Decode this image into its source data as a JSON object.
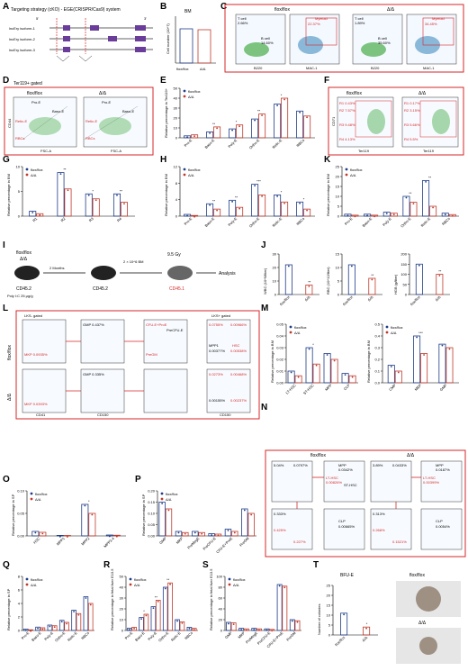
{
  "colors": {
    "flox": "#1f3c88",
    "delta": "#c0392b",
    "gate": "#d62728",
    "box": "#d62728"
  },
  "legend": {
    "flox": "flox/flox",
    "delta": "Δ/Δ"
  },
  "panelA": {
    "title": "Targeting strategy (cKO) - EGE(CRISPR/Cas9) system",
    "isoforms": [
      "lncEry isoform-1",
      "lncEry isoform-2",
      "lncEry isoform-3"
    ],
    "five": "5'",
    "three": "3'"
  },
  "panelB": {
    "title": "BM",
    "ylabel": "Cell number (10^7)",
    "categories": [
      "flox/flox",
      "Δ/Δ"
    ],
    "ticks": [
      "0",
      "1",
      "2",
      "3"
    ]
  },
  "panelC": {
    "flox_title": "flox/flox",
    "delta_title": "Δ/Δ",
    "tcell": "T cell",
    "bcell": "B cell",
    "myeloid": "Myeloid",
    "flox_t": "2.66%",
    "flox_b": "14.60%",
    "flox_m": "22.37%",
    "delta_t": "1.89%",
    "delta_b": "35.60%",
    "delta_m": "34.45%",
    "x1": "B220",
    "y1": "CD3",
    "x2": "MAC-1",
    "y2": "SSC-A"
  },
  "panelD": {
    "title": "Ter119+ gated",
    "flox_title": "flox/flox",
    "delta_title": "Δ/Δ",
    "xlabel": "FSC-A",
    "ylabel": "CD44",
    "gates": [
      "Pro-E",
      "Baso-E",
      "Poly-E",
      "Ortho-E",
      "Retic-E",
      "RBCs"
    ],
    "flox_pct": [
      "1.90%",
      "5.44%",
      "6.33%",
      "4.59%",
      "18.0%",
      "25.0%"
    ],
    "delta_pct": [
      "1.43%",
      "6.49%",
      "7.15%",
      "4.58%",
      "11.0%",
      "14.8%"
    ]
  },
  "panelF": {
    "flox_title": "flox/flox",
    "delta_title": "Δ/Δ",
    "xlabel": "Ter119",
    "ylabel": "CD71",
    "flox": [
      "R1 0.43%",
      "R2 7.57%",
      "R3 9.48%",
      "R4 4.13%"
    ],
    "delta": [
      "R1 0.17%",
      "R2 3.15%",
      "R3 5.66%",
      "R4 5.5%"
    ]
  },
  "panelI": {
    "donor": "flox/flox",
    "donor2": "Δ/Δ",
    "cd452": "CD45.2",
    "polyic": "Poly I:C 25 μg/g",
    "months": "2 Months",
    "cells": "2 × 10^6 BM",
    "gy": "9.5 Gy",
    "cd451": "CD45.1",
    "analysis": "Analysis"
  },
  "panelL": {
    "flox": "flox/flox",
    "delta": "Δ/Δ",
    "lks1": "LKS- gated",
    "lks2": "LKS+ gated",
    "gmp_f": "GMP 0.437%",
    "mkp_f": "MKP 0.0935%",
    "gmp_d": "GMP 0.335%",
    "mkp_d": "MKP 0.0393%",
    "cd41": "CD41",
    "cd150": "CD150",
    "cd16": "CD16/32",
    "cd48": "CD48",
    "cd105": "CD105",
    "cfu": "CFU-E+ProE",
    "precfu": "PreCFU-E",
    "premegE": "PreMegE",
    "pregm": "PreGM",
    "mpp1": "MPP1",
    "mpp2": "MPP2",
    "mpp34": "MPP3/4",
    "hsc": "HSC",
    "f_mpp34": "0.0755%",
    "f_mpp2": "0.00966%",
    "f_mpp1": "0.00377%",
    "f_hsc": "0.00538%",
    "d_mpp34": "0.0273%",
    "d_mpp2": "0.00468%",
    "d_mpp1": "0.00155%",
    "d_hsc": "0.00237%"
  },
  "panelN": {
    "flox": "flox/flox",
    "delta": "Δ/Δ",
    "lksm": "LKS-",
    "lksp": "LKS+",
    "mpp": "MPP",
    "lthsc": "LT-HSC",
    "sthsc": "ST-HSC",
    "gmp": "GMP",
    "mep": "MEP",
    "cmp": "CMP",
    "clp": "CLP",
    "sca1": "Sca-1",
    "ckit": "c-Kit",
    "cd34": "CD34",
    "cd127": "CD127",
    "cd16": "CD16/32",
    "f_lksm": "5.04%",
    "f_lksp": "0.0797%",
    "f_mpp": "0.0342%",
    "f_lt": "0.00826%",
    "f_st": "0.0164%",
    "f_gmp": "0.333%",
    "f_mep": "0.425%",
    "f_cmp": "0.227%",
    "f_clp": "0.00665%",
    "d_lksm": "3.89%",
    "d_lksp": "0.0433%",
    "d_mpp": "0.0187%",
    "d_lt": "0.00399%",
    "d_st": "0.0162%",
    "d_gmp": "0.313%",
    "d_mep": "0.268%",
    "d_cmp": "0.1521%",
    "d_clp": "0.0054%"
  },
  "panelT": {
    "title": "MEP",
    "bfu": "BFU-E",
    "flox": "flox/flox",
    "delta": "Δ/Δ",
    "ylabel": "Number of colonies"
  },
  "chart_data": [
    {
      "id": "E",
      "type": "bar",
      "ylabel": "Relative percentage in Ter119+",
      "ylim": [
        0,
        50
      ],
      "ticks": [
        "0",
        "10",
        "20",
        "30",
        "40",
        "50"
      ],
      "categories": [
        "Pro-E",
        "Baso-E",
        "Poly-E",
        "Ortho-E",
        "Retic-E",
        "RBCs"
      ],
      "series": [
        {
          "name": "flox/flox",
          "values": [
            2,
            6,
            9,
            19,
            34,
            27
          ]
        },
        {
          "name": "Δ/Δ",
          "values": [
            3,
            11,
            13,
            24,
            40,
            22
          ]
        }
      ],
      "sig": [
        "",
        "**",
        "*",
        "**",
        "*",
        ""
      ]
    },
    {
      "id": "G",
      "type": "bar",
      "ylabel": "Relative percentage in BM",
      "ylim": [
        0,
        10
      ],
      "ticks": [
        "0",
        "5",
        "10"
      ],
      "categories": [
        "R1",
        "R2",
        "R3",
        "R4"
      ],
      "series": [
        {
          "name": "flox/flox",
          "values": [
            1.0,
            8.8,
            4.5,
            4.5
          ]
        },
        {
          "name": "Δ/Δ",
          "values": [
            0.5,
            5.5,
            3.5,
            2.8
          ]
        }
      ],
      "sig": [
        "",
        "**",
        "*",
        "**"
      ]
    },
    {
      "id": "H",
      "type": "bar",
      "ylabel": "Relative percentage in BM",
      "ylim": [
        0,
        14
      ],
      "ticks": [
        "0",
        "4",
        "8",
        "12"
      ],
      "categories": [
        "Pro-E",
        "Baso-E",
        "Poly-E",
        "Ortho-E",
        "Retic-E",
        "RBCs"
      ],
      "series": [
        {
          "name": "flox/flox",
          "values": [
            0.5,
            3.5,
            4.5,
            9,
            6,
            4
          ]
        },
        {
          "name": "Δ/Δ",
          "values": [
            0.2,
            2.0,
            2.5,
            6,
            4,
            2
          ]
        }
      ],
      "sig": [
        "",
        "**",
        "**",
        "***",
        "*",
        "*"
      ]
    },
    {
      "id": "K",
      "type": "bar",
      "ylabel": "Relative percentage in BM",
      "ylim": [
        0,
        25
      ],
      "ticks": [
        "0",
        "5",
        "10",
        "15",
        "20",
        "25"
      ],
      "categories": [
        "Pro-E",
        "Baso-E",
        "Poly-E",
        "Ortho-E",
        "Retic-E",
        "RBCs"
      ],
      "series": [
        {
          "name": "flox/flox",
          "values": [
            1,
            1,
            2,
            10,
            18,
            1.5
          ]
        },
        {
          "name": "Δ/Δ",
          "values": [
            0.5,
            0.5,
            1.5,
            7,
            5,
            0.8
          ]
        }
      ],
      "sig": [
        "",
        "",
        "",
        "**",
        "**",
        ""
      ]
    },
    {
      "id": "J1",
      "type": "bar",
      "ylabel": "WBC (10^9/liter)",
      "ylim": [
        0,
        30
      ],
      "ticks": [
        "0",
        "10",
        "20",
        "30"
      ],
      "categories": [
        "flox/flox",
        "Δ/Δ"
      ],
      "values": [
        22,
        7
      ],
      "sig": [
        "",
        "**"
      ]
    },
    {
      "id": "J2",
      "type": "bar",
      "ylabel": "RBC (10^12/liter)",
      "ylim": [
        0,
        15
      ],
      "ticks": [
        "0",
        "5",
        "10",
        "15"
      ],
      "categories": [
        "flox/flox",
        "Δ/Δ"
      ],
      "values": [
        11,
        6
      ],
      "sig": [
        "",
        "**"
      ]
    },
    {
      "id": "J3",
      "type": "bar",
      "ylabel": "HGB (g/liter)",
      "ylim": [
        0,
        200
      ],
      "ticks": [
        "0",
        "50",
        "100",
        "150",
        "200"
      ],
      "categories": [
        "flox/flox",
        "Δ/Δ"
      ],
      "values": [
        150,
        100
      ],
      "sig": [
        "",
        "**"
      ]
    },
    {
      "id": "M1",
      "type": "bar",
      "ylabel": "Relative percentage in BM",
      "ylim": [
        0,
        0.05
      ],
      "ticks": [
        "0.00",
        "0.01",
        "0.02",
        "0.03",
        "0.04",
        "0.05"
      ],
      "categories": [
        "LT-HSC",
        "ST-HSC",
        "MPP",
        "CLP"
      ],
      "series": [
        {
          "name": "flox/flox",
          "values": [
            0.01,
            0.03,
            0.025,
            0.008
          ]
        },
        {
          "name": "Δ/Δ",
          "values": [
            0.006,
            0.016,
            0.02,
            0.006
          ]
        }
      ],
      "sig": [
        "",
        "*",
        "",
        ""
      ]
    },
    {
      "id": "M2",
      "type": "bar",
      "ylabel": "Relative percentage in BM",
      "ylim": [
        0,
        0.5
      ],
      "ticks": [
        "0.0",
        "0.1",
        "0.2",
        "0.3",
        "0.4",
        "0.5"
      ],
      "categories": [
        "CMP",
        "MEP",
        "GMP"
      ],
      "series": [
        {
          "name": "flox/flox",
          "values": [
            0.15,
            0.4,
            0.33
          ]
        },
        {
          "name": "Δ/Δ",
          "values": [
            0.1,
            0.25,
            0.3
          ]
        }
      ],
      "sig": [
        "",
        "***",
        ""
      ]
    },
    {
      "id": "O",
      "type": "bar",
      "ylabel": "Relative percentage in SP",
      "ylim": [
        0,
        0.1
      ],
      "ticks": [
        "0.00",
        "0.05",
        "0.10"
      ],
      "categories": [
        "HSC",
        "MPP1",
        "MPP2",
        "MPP3-4"
      ],
      "series": [
        {
          "name": "flox/flox",
          "values": [
            0.01,
            0.0012,
            0.07,
            0.002
          ]
        },
        {
          "name": "Δ/Δ",
          "values": [
            0.008,
            0.001,
            0.05,
            0.0015
          ]
        }
      ],
      "sig": [
        "",
        "",
        "*",
        ""
      ]
    },
    {
      "id": "P",
      "type": "bar",
      "ylabel": "Relative percentage in SP",
      "ylim": [
        0,
        0.2
      ],
      "ticks": [
        "0.00",
        "0.05",
        "0.10",
        "0.15",
        "0.20"
      ],
      "categories": [
        "GMP",
        "MKP",
        "PreMegE",
        "PreCFU-E",
        "CFU-E+ProE",
        "PreGM"
      ],
      "series": [
        {
          "name": "flox/flox",
          "values": [
            0.15,
            0.02,
            0.02,
            0.01,
            0.03,
            0.12
          ]
        },
        {
          "name": "Δ/Δ",
          "values": [
            0.12,
            0.015,
            0.015,
            0.008,
            0.02,
            0.1
          ]
        }
      ],
      "sig": [
        "",
        "",
        "",
        "",
        "",
        ""
      ]
    },
    {
      "id": "Q",
      "type": "bar",
      "ylabel": "Relative percentage in SP",
      "ylim": [
        0,
        8
      ],
      "ticks": [
        "0",
        "2",
        "4",
        "6",
        "8"
      ],
      "categories": [
        "Pro-E",
        "Baso-E",
        "Poly-E",
        "Ortho-E",
        "Retic-E",
        "RBCs"
      ],
      "series": [
        {
          "name": "flox/flox",
          "values": [
            0.2,
            0.5,
            0.8,
            1.5,
            3,
            5
          ]
        },
        {
          "name": "Δ/Δ",
          "values": [
            0.1,
            0.4,
            0.7,
            1.2,
            2.5,
            4
          ]
        }
      ],
      "sig": [
        "",
        "",
        "",
        "",
        "",
        ""
      ]
    },
    {
      "id": "R",
      "type": "bar",
      "ylabel": "Relative percentage in fetal liver E13.5",
      "ylim": [
        0,
        50
      ],
      "ticks": [
        "0",
        "10",
        "20",
        "30",
        "40",
        "50"
      ],
      "categories": [
        "Pro-E",
        "Baso-E",
        "Poly-E",
        "Ortho-E",
        "Retic-E",
        "RBCs"
      ],
      "series": [
        {
          "name": "flox/flox",
          "values": [
            2,
            12,
            22,
            40,
            10,
            3
          ]
        },
        {
          "name": "Δ/Δ",
          "values": [
            3,
            15,
            28,
            44,
            8,
            2
          ]
        }
      ],
      "sig": [
        "",
        "*",
        "**",
        "**",
        "",
        ""
      ]
    },
    {
      "id": "S",
      "type": "bar",
      "ylabel": "Relative percentage in fetal liver E13.5",
      "ylim": [
        0,
        100
      ],
      "ticks": [
        "0",
        "20",
        "40",
        "60",
        "80",
        "100"
      ],
      "categories": [
        "GMP",
        "MKP",
        "PreMegE",
        "PreCFU-E",
        "CFU-E+ProE",
        "PreGM"
      ],
      "series": [
        {
          "name": "flox/flox",
          "values": [
            15,
            4,
            4,
            3,
            85,
            20
          ]
        },
        {
          "name": "Δ/Δ",
          "values": [
            14,
            3,
            3,
            2,
            82,
            18
          ]
        }
      ],
      "sig": [
        "",
        "",
        "",
        "",
        "",
        ""
      ]
    },
    {
      "id": "T",
      "type": "bar",
      "ylabel": "Number of colonies",
      "ylim": [
        0,
        25
      ],
      "ticks": [
        "0",
        "5",
        "10",
        "15",
        "20",
        "25"
      ],
      "categories": [
        "flox/flox",
        "Δ/Δ"
      ],
      "values": [
        11,
        4
      ],
      "sig": [
        "",
        "*"
      ]
    }
  ]
}
